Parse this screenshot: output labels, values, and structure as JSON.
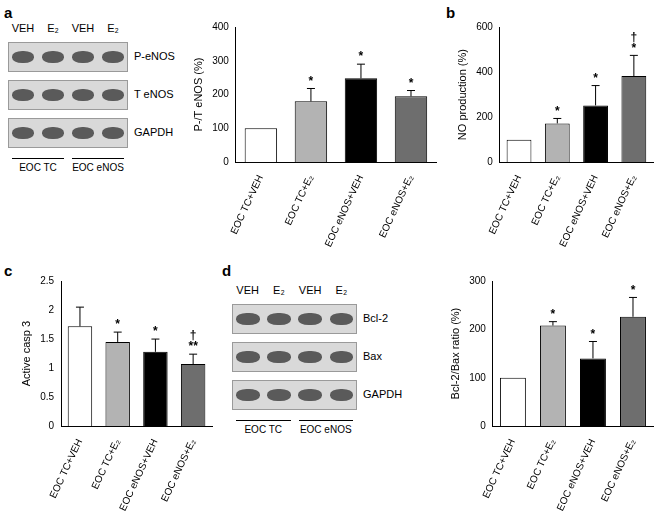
{
  "chart_data": [
    {
      "panel": "a",
      "type": "bar",
      "categories": [
        "EOC TC+VEH",
        "EOC TC+E₂",
        "EOC eNOS+VEH",
        "EOC eNOS+E₂"
      ],
      "values": [
        100,
        180,
        248,
        195
      ],
      "errors": [
        0,
        38,
        42,
        17
      ],
      "annotations": [
        [],
        [
          "*"
        ],
        [
          "*"
        ],
        [
          "*"
        ]
      ],
      "colors": [
        "#ffffff",
        "#b3b3b3",
        "#000000",
        "#6e6e6e"
      ],
      "ylabel": "P-/T eNOS (%)",
      "ylim": [
        0,
        400
      ],
      "yticks": [
        0,
        100,
        200,
        300,
        400
      ],
      "grid": false
    },
    {
      "panel": "b",
      "type": "bar",
      "categories": [
        "EOC TC+VEH",
        "EOC TC+E₂",
        "EOC eNOS+VEH",
        "EOC eNOS+E₂"
      ],
      "values": [
        100,
        172,
        252,
        382
      ],
      "errors": [
        0,
        22,
        88,
        92
      ],
      "annotations": [
        [],
        [
          "*"
        ],
        [
          "*"
        ],
        [
          "†",
          "*"
        ]
      ],
      "colors": [
        "#ffffff",
        "#b3b3b3",
        "#000000",
        "#6e6e6e"
      ],
      "ylabel": "NO production (%)",
      "ylim": [
        0,
        600
      ],
      "yticks": [
        0,
        200,
        400,
        600
      ],
      "grid": false
    },
    {
      "panel": "c",
      "type": "bar",
      "categories": [
        "EOC TC+VEH",
        "EOC TC+E₂",
        "EOC eNOS+VEH",
        "EOC eNOS+E₂"
      ],
      "values": [
        1.72,
        1.45,
        1.28,
        1.07
      ],
      "errors": [
        0.33,
        0.17,
        0.22,
        0.17
      ],
      "annotations": [
        [],
        [
          "*"
        ],
        [
          "*"
        ],
        [
          "†",
          "**"
        ]
      ],
      "colors": [
        "#ffffff",
        "#b3b3b3",
        "#000000",
        "#6e6e6e"
      ],
      "ylabel": "Active casp 3",
      "ylim": [
        0,
        2.5
      ],
      "yticks": [
        0,
        0.5,
        1,
        1.5,
        2,
        2.5
      ],
      "grid": false
    },
    {
      "panel": "d",
      "type": "bar",
      "categories": [
        "EOC TC+VEH",
        "EOC TC+E₂",
        "EOC eNOS+VEH",
        "EOC eNOS+E₂"
      ],
      "values": [
        100,
        208,
        140,
        226
      ],
      "errors": [
        0,
        8,
        35,
        40
      ],
      "annotations": [
        [],
        [
          "*"
        ],
        [
          "*"
        ],
        [
          "*"
        ]
      ],
      "colors": [
        "#ffffff",
        "#b3b3b3",
        "#000000",
        "#6e6e6e"
      ],
      "ylabel": "Bcl-2/Bax ratio (%)",
      "ylim": [
        0,
        300
      ],
      "yticks": [
        0,
        100,
        200,
        300
      ],
      "grid": false
    }
  ],
  "blots": [
    {
      "lanes": [
        "VEH",
        "E₂",
        "VEH",
        "E₂"
      ],
      "rows": [
        "P-eNOS",
        "T eNOS",
        "GAPDH"
      ],
      "groups": [
        "EOC TC",
        "EOC eNOS"
      ]
    },
    {
      "lanes": [
        "VEH",
        "E₂",
        "VEH",
        "E₂"
      ],
      "rows": [
        "Bcl-2",
        "Bax",
        "GAPDH"
      ],
      "groups": [
        "EOC TC",
        "EOC eNOS"
      ]
    }
  ]
}
